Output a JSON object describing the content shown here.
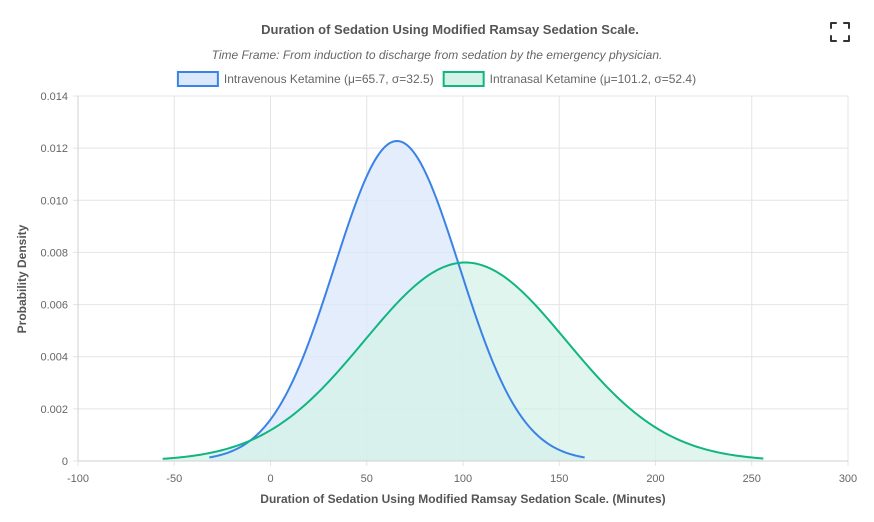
{
  "chart_data": {
    "type": "area",
    "title": "Duration of Sedation Using Modified Ramsay Sedation Scale.",
    "subtitle": "Time Frame: From induction to discharge from sedation by the emergency physician.",
    "xlabel": "Duration of Sedation Using Modified Ramsay Sedation Scale. (Minutes)",
    "ylabel": "Probability Density",
    "xlim": [
      -100,
      300
    ],
    "ylim": [
      0,
      0.014
    ],
    "x_ticks": [
      "-100",
      "-50",
      "0",
      "50",
      "100",
      "150",
      "200",
      "250",
      "300"
    ],
    "y_ticks": [
      "0",
      "0.002",
      "0.004",
      "0.006",
      "0.008",
      "0.010",
      "0.012",
      "0.014"
    ],
    "grid": true,
    "legend_position": "top",
    "series": [
      {
        "name": "Intravenous Ketamine (μ=65.7, σ=32.5)",
        "mean": 65.7,
        "sd": 32.5,
        "x_range": [
          -31.8,
          163.2
        ],
        "color": "#3b82e6",
        "fill": "#dbe7fb"
      },
      {
        "name": "Intranasal Ketamine (μ=101.2, σ=52.4)",
        "mean": 101.2,
        "sd": 52.4,
        "x_range": [
          -56,
          256
        ],
        "color": "#10b57f",
        "fill": "#d4f2e8"
      }
    ]
  },
  "ui": {
    "expand_icon": "expand-icon"
  }
}
